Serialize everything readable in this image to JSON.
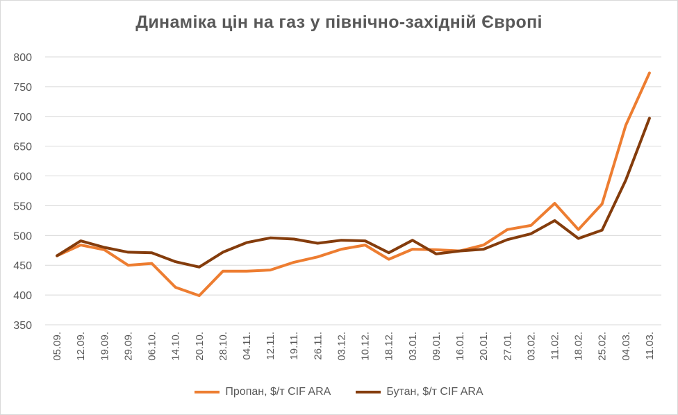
{
  "chart_data": {
    "type": "line",
    "title": "Динаміка цін на газ у північно-західній Європі",
    "categories": [
      "05.09.",
      "12.09.",
      "19.09.",
      "29.09.",
      "06.10.",
      "14.10.",
      "20.10.",
      "28.10.",
      "04.11.",
      "12.11.",
      "19.11.",
      "26.11.",
      "03.12.",
      "10.12.",
      "18.12.",
      "03.01.",
      "09.01.",
      "16.01.",
      "20.01.",
      "27.01.",
      "03.02.",
      "11.02.",
      "18.02.",
      "25.02.",
      "04.03.",
      "11.03."
    ],
    "yticks": [
      "800",
      "750",
      "700",
      "650",
      "600",
      "550",
      "500",
      "450",
      "400",
      "350"
    ],
    "ylim": [
      350,
      800
    ],
    "grid": true,
    "legend_position": "bottom",
    "series": [
      {
        "name": "Пропан, $/т CIF ARA",
        "color": "#ed7d31",
        "values": [
          466,
          484,
          476,
          450,
          453,
          413,
          399,
          440,
          440,
          442,
          455,
          464,
          477,
          484,
          460,
          477,
          476,
          474,
          484,
          510,
          517,
          554,
          510,
          553,
          685,
          773
        ]
      },
      {
        "name": "Бутан, $/т CIF ARA",
        "color": "#843c0c",
        "values": [
          466,
          491,
          480,
          472,
          471,
          456,
          447,
          472,
          488,
          496,
          494,
          487,
          492,
          491,
          471,
          492,
          469,
          474,
          477,
          493,
          503,
          525,
          495,
          509,
          593,
          697
        ]
      }
    ]
  }
}
